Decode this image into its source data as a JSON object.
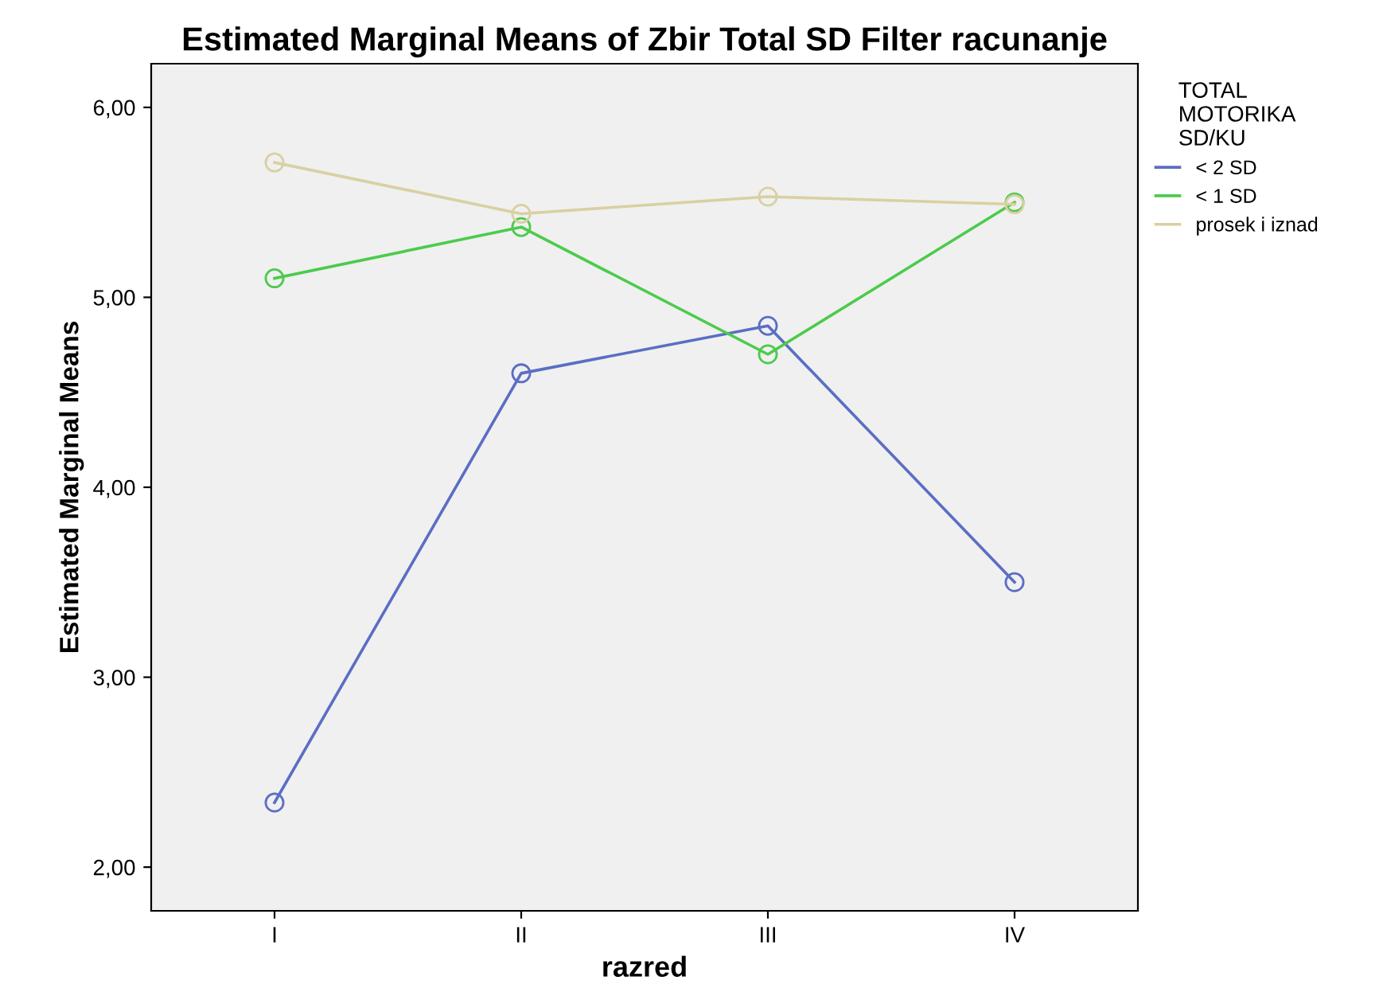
{
  "chart_data": {
    "type": "line",
    "title": "Estimated Marginal Means of Zbir Total SD Filter racunanje",
    "xlabel": "razred",
    "ylabel": "Estimated Marginal Means",
    "legend_title": "TOTAL\nMOTORIKA\nSD/KU",
    "categories": [
      "I",
      "II",
      "III",
      "IV"
    ],
    "series": [
      {
        "name": "< 2 SD",
        "color": "#5b6ec4",
        "values": [
          2.34,
          4.6,
          4.85,
          3.5
        ]
      },
      {
        "name": "< 1 SD",
        "color": "#4ccb4c",
        "values": [
          5.1,
          5.37,
          4.7,
          5.5
        ]
      },
      {
        "name": "prosek i iznad",
        "color": "#d9d0a3",
        "values": [
          5.71,
          5.44,
          5.53,
          5.49
        ]
      }
    ],
    "ylim": [
      1.77,
      6.23
    ],
    "yticks": [
      {
        "value": 2,
        "label": "2,00"
      },
      {
        "value": 3,
        "label": "3,00"
      },
      {
        "value": 4,
        "label": "4,00"
      },
      {
        "value": 5,
        "label": "5,00"
      },
      {
        "value": 6,
        "label": "6,00"
      }
    ],
    "grid": false,
    "legend": "right",
    "marker": "circle",
    "line_style": "solid"
  }
}
